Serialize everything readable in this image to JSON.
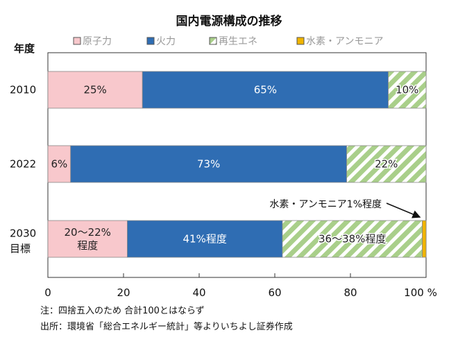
{
  "chart_data": {
    "type": "bar",
    "orientation": "horizontal-stacked",
    "title": "国内電源構成の推移",
    "ylabel": "年度",
    "xlim": [
      0,
      100
    ],
    "xticks": [
      "0",
      "20",
      "40",
      "60",
      "80",
      "100 %"
    ],
    "xtick_values": [
      0,
      20,
      40,
      60,
      80,
      100
    ],
    "legend": [
      {
        "name": "原子力",
        "color": "#f8c8cc",
        "pattern": "solid"
      },
      {
        "name": "火力",
        "color": "#2f6db3",
        "pattern": "solid"
      },
      {
        "name": "再生エネ",
        "color": "#a9cf8a",
        "pattern": "stripe"
      },
      {
        "name": "水素・アンモニア",
        "color": "#f0b400",
        "pattern": "solid"
      }
    ],
    "categories": [
      {
        "line1": "2010",
        "line2": ""
      },
      {
        "line1": "2022",
        "line2": ""
      },
      {
        "line1": "2030",
        "line2": "目標"
      }
    ],
    "series": [
      {
        "name": "原子力",
        "values": [
          25,
          6,
          21
        ],
        "labels": [
          [
            "25%"
          ],
          [
            "6%"
          ],
          [
            "20～22%",
            "程度"
          ]
        ]
      },
      {
        "name": "火力",
        "values": [
          65,
          73,
          41
        ],
        "labels": [
          [
            "65%"
          ],
          [
            "73%"
          ],
          [
            "41%程度"
          ]
        ]
      },
      {
        "name": "再生エネ",
        "values": [
          10,
          22,
          37
        ],
        "labels": [
          [
            "10%"
          ],
          [
            "22%"
          ],
          [
            "36～38%程度"
          ]
        ]
      },
      {
        "name": "水素・アンモニア",
        "values": [
          0,
          0,
          1
        ],
        "labels": [
          [],
          [],
          []
        ]
      }
    ],
    "annotation": "水素・アンモニア1%程度",
    "notes": [
      "注：四捨五入のため 合計100とはならず",
      "出所：環境省「総合エネルギー統計」等よりいちよし証券作成"
    ]
  }
}
